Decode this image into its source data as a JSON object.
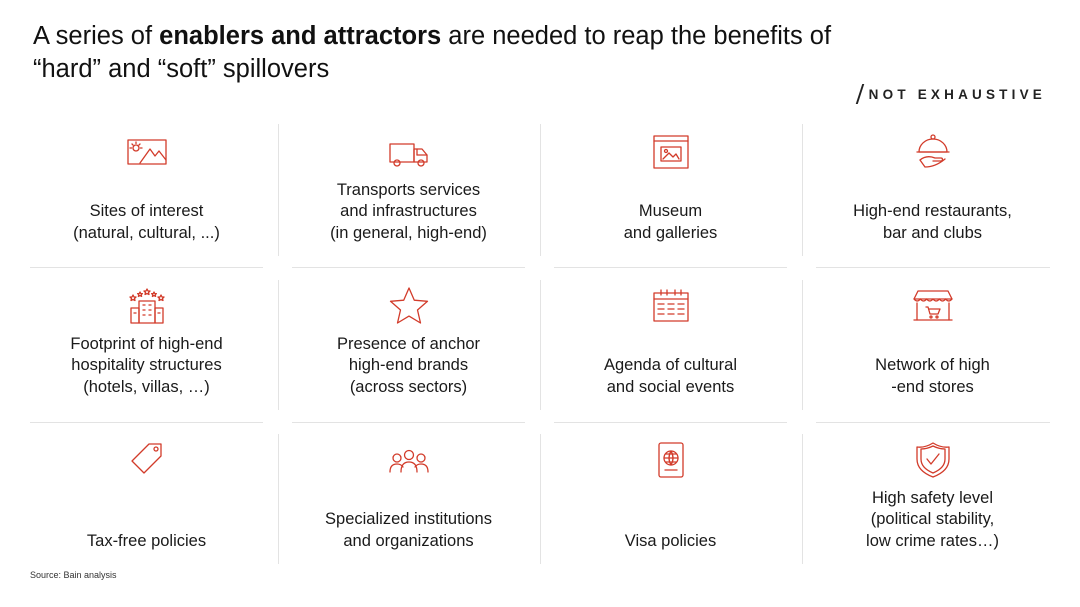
{
  "title": {
    "part1": "A series of ",
    "bold": "enablers and attractors",
    "part2": " are needed to reap the benefits of “hard” and “soft” spillovers"
  },
  "tag": "NOT EXHAUSTIVE",
  "cells": [
    {
      "label": "Sites of interest\n(natural, cultural, ...)",
      "icon": "landscape-icon"
    },
    {
      "label": "Transports services\nand infrastructures\n(in general, high-end)",
      "icon": "truck-icon"
    },
    {
      "label": "Museum\nand galleries",
      "icon": "museum-icon"
    },
    {
      "label": "High-end restaurants,\nbar and clubs",
      "icon": "cloche-icon"
    },
    {
      "label": "Footprint of high-end\nhospitality structures\n(hotels, villas, …)",
      "icon": "hotel-icon"
    },
    {
      "label": "Presence of anchor\nhigh-end brands\n(across sectors)",
      "icon": "star-icon"
    },
    {
      "label": "Agenda of cultural\nand social events",
      "icon": "calendar-icon"
    },
    {
      "label": "Network of high\n-end stores",
      "icon": "store-icon"
    },
    {
      "label": "Tax-free policies",
      "icon": "price-tag-icon"
    },
    {
      "label": "Specialized institutions\nand organizations",
      "icon": "people-icon"
    },
    {
      "label": "Visa policies",
      "icon": "passport-icon"
    },
    {
      "label": "High safety level\n(political stability,\nlow crime rates…)",
      "icon": "shield-check-icon"
    }
  ],
  "source": "Source: Bain analysis",
  "colors": {
    "accent": "#d23b2a",
    "divider": "#e3e3e3"
  }
}
